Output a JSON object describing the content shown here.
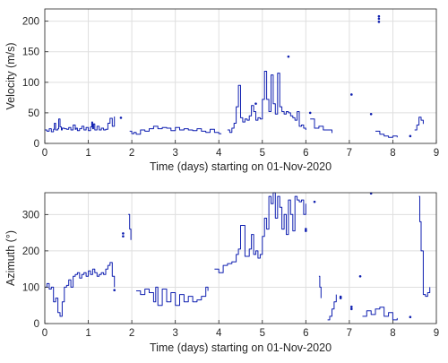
{
  "colors": {
    "series": "#0f1fb0",
    "grid": "#dfdfdf",
    "axis": "#262626"
  },
  "chart_data": [
    {
      "type": "line",
      "title": "",
      "xlabel": "Time (days) starting on 01-Nov-2020",
      "ylabel": "Velocity (m/s)",
      "xlim": [
        0,
        9
      ],
      "ylim": [
        0,
        220
      ],
      "xticks": [
        0,
        1,
        2,
        3,
        4,
        5,
        6,
        7,
        8,
        9
      ],
      "yticks": [
        0,
        50,
        100,
        150,
        200
      ],
      "xtick_labels": [
        "0",
        "1",
        "2",
        "3",
        "4",
        "5",
        "6",
        "7",
        "8",
        "9"
      ],
      "ytick_labels": [
        "0",
        "50",
        "100",
        "150",
        "200"
      ],
      "grid": true,
      "segments": [
        {
          "x": [
            0.0,
            0.05,
            0.1,
            0.15,
            0.2,
            0.22,
            0.25,
            0.3,
            0.32,
            0.35,
            0.38,
            0.4,
            0.45,
            0.5,
            0.55,
            0.6,
            0.65,
            0.7,
            0.72,
            0.75,
            0.8,
            0.85,
            0.9,
            0.95,
            1.0,
            1.05,
            1.08,
            1.1,
            1.12,
            1.15,
            1.2,
            1.25,
            1.3,
            1.35,
            1.4,
            1.45,
            1.5,
            1.55,
            1.6
          ],
          "y": [
            22,
            20,
            24,
            19,
            23,
            33,
            22,
            24,
            40,
            27,
            22,
            25,
            24,
            23,
            26,
            22,
            30,
            23,
            25,
            21,
            24,
            28,
            22,
            26,
            21,
            27,
            35,
            24,
            32,
            22,
            28,
            22,
            25,
            22,
            23,
            33,
            41,
            28,
            44
          ]
        },
        {
          "x": [
            1.95,
            2.0,
            2.05,
            2.1,
            2.2,
            2.3,
            2.4,
            2.5,
            2.6,
            2.7,
            2.8,
            2.9,
            3.0,
            3.1,
            3.2,
            3.3,
            3.4,
            3.5,
            3.6,
            3.7,
            3.8,
            3.9,
            4.0,
            4.05
          ],
          "y": [
            20,
            16,
            18,
            15,
            22,
            20,
            24,
            28,
            24,
            26,
            25,
            21,
            26,
            22,
            24,
            22,
            21,
            24,
            20,
            18,
            23,
            18,
            16,
            15
          ]
        },
        {
          "x": [
            4.2,
            4.25,
            4.3,
            4.35,
            4.4,
            4.45,
            4.5,
            4.55,
            4.6,
            4.65,
            4.7,
            4.75,
            4.8,
            4.85,
            4.9,
            4.95,
            5.0,
            5.05,
            5.1,
            5.15,
            5.2,
            5.25,
            5.3,
            5.35,
            5.4,
            5.45,
            5.5,
            5.55,
            5.6,
            5.65,
            5.7,
            5.75,
            5.8,
            5.85,
            5.9,
            5.95,
            6.0
          ],
          "y": [
            22,
            18,
            25,
            33,
            60,
            95,
            42,
            35,
            40,
            38,
            45,
            62,
            52,
            38,
            42,
            40,
            72,
            118,
            72,
            52,
            112,
            65,
            48,
            115,
            60,
            52,
            48,
            52,
            50,
            45,
            42,
            38,
            52,
            28,
            30,
            25,
            22
          ]
        },
        {
          "x": [
            6.1,
            6.2,
            6.3,
            6.4,
            6.5,
            6.6
          ],
          "y": [
            40,
            25,
            28,
            22,
            22,
            17
          ]
        },
        {
          "x": [
            7.6,
            7.7,
            7.8,
            7.9,
            8.0,
            8.1
          ],
          "y": [
            20,
            15,
            12,
            10,
            12,
            10
          ]
        },
        {
          "x": [
            8.5,
            8.55,
            8.6,
            8.65,
            8.7
          ],
          "y": [
            22,
            30,
            43,
            38,
            32
          ]
        }
      ],
      "points": [
        {
          "x": 1.75,
          "y": 42
        },
        {
          "x": 4.85,
          "y": 65
        },
        {
          "x": 5.6,
          "y": 142
        },
        {
          "x": 6.1,
          "y": 50
        },
        {
          "x": 7.05,
          "y": 80
        },
        {
          "x": 7.5,
          "y": 48
        },
        {
          "x": 7.68,
          "y": 199
        },
        {
          "x": 7.68,
          "y": 204
        },
        {
          "x": 7.68,
          "y": 208
        },
        {
          "x": 8.4,
          "y": 12
        }
      ]
    },
    {
      "type": "line",
      "title": "",
      "xlabel": "Time (days) starting on 01-Nov-2020",
      "ylabel": "Azimuth (°)",
      "xlim": [
        0,
        9
      ],
      "ylim": [
        0,
        360
      ],
      "xticks": [
        0,
        1,
        2,
        3,
        4,
        5,
        6,
        7,
        8,
        9
      ],
      "yticks": [
        0,
        100,
        200,
        300
      ],
      "xtick_labels": [
        "0",
        "1",
        "2",
        "3",
        "4",
        "5",
        "6",
        "7",
        "8",
        "9"
      ],
      "ytick_labels": [
        "0",
        "100",
        "200",
        "300"
      ],
      "grid": true,
      "segments": [
        {
          "x": [
            0.0,
            0.05,
            0.1,
            0.15,
            0.2,
            0.25,
            0.3,
            0.35,
            0.4,
            0.45,
            0.5,
            0.55,
            0.6,
            0.65,
            0.7,
            0.75,
            0.8,
            0.85,
            0.9,
            0.95,
            1.0,
            1.05,
            1.1,
            1.15,
            1.2,
            1.25,
            1.3,
            1.35,
            1.4,
            1.45,
            1.5,
            1.55,
            1.6
          ],
          "y": [
            100,
            110,
            95,
            100,
            60,
            70,
            30,
            20,
            60,
            100,
            105,
            120,
            100,
            130,
            135,
            140,
            125,
            135,
            140,
            130,
            145,
            135,
            150,
            140,
            130,
            135,
            140,
            135,
            150,
            160,
            168,
            130,
            100
          ]
        },
        {
          "x": [
            1.92,
            1.95,
            1.98
          ],
          "y": [
            300,
            260,
            230
          ]
        },
        {
          "x": [
            2.1,
            2.2,
            2.3,
            2.4,
            2.5,
            2.55,
            2.6,
            2.7,
            2.8,
            2.9,
            3.0,
            3.1,
            3.2,
            3.3,
            3.4,
            3.5,
            3.6,
            3.7,
            3.75
          ],
          "y": [
            90,
            80,
            95,
            85,
            60,
            100,
            50,
            95,
            60,
            85,
            50,
            80,
            60,
            75,
            60,
            65,
            75,
            100,
            90
          ]
        },
        {
          "x": [
            3.9,
            4.0,
            4.1,
            4.2,
            4.3,
            4.4,
            4.45,
            4.5,
            4.6,
            4.7,
            4.75,
            4.8,
            4.85,
            4.9,
            4.95,
            5.0,
            5.05,
            5.1,
            5.15,
            5.2,
            5.25,
            5.3,
            5.35,
            5.4,
            5.45,
            5.5,
            5.55,
            5.6,
            5.65,
            5.7,
            5.75,
            5.8,
            5.85,
            5.9,
            5.95,
            6.0
          ],
          "y": [
            150,
            140,
            160,
            165,
            170,
            190,
            205,
            270,
            185,
            205,
            245,
            190,
            200,
            180,
            190,
            240,
            290,
            260,
            350,
            330,
            360,
            290,
            350,
            320,
            260,
            300,
            245,
            340,
            300,
            255,
            350,
            340,
            335,
            340,
            300,
            330
          ]
        },
        {
          "x": [
            6.3,
            6.32,
            6.35
          ],
          "y": [
            130,
            100,
            70
          ]
        },
        {
          "x": [
            6.5,
            6.55,
            6.6,
            6.65,
            6.7
          ],
          "y": [
            10,
            20,
            40,
            60,
            80
          ]
        },
        {
          "x": [
            7.3,
            7.4,
            7.5,
            7.6,
            7.7,
            7.8,
            7.9,
            8.0,
            8.1
          ],
          "y": [
            20,
            35,
            25,
            40,
            45,
            20,
            30,
            10,
            15
          ]
        },
        {
          "x": [
            8.6,
            8.62,
            8.65,
            8.7,
            8.75,
            8.8,
            8.85
          ],
          "y": [
            350,
            280,
            200,
            80,
            75,
            85,
            100
          ]
        }
      ],
      "points": [
        {
          "x": 1.6,
          "y": 92
        },
        {
          "x": 1.8,
          "y": 240
        },
        {
          "x": 1.8,
          "y": 248
        },
        {
          "x": 6.0,
          "y": 255
        },
        {
          "x": 6.0,
          "y": 260
        },
        {
          "x": 6.2,
          "y": 335
        },
        {
          "x": 6.8,
          "y": 70
        },
        {
          "x": 6.8,
          "y": 74
        },
        {
          "x": 7.05,
          "y": 40
        },
        {
          "x": 7.05,
          "y": 46
        },
        {
          "x": 7.25,
          "y": 130
        },
        {
          "x": 7.5,
          "y": 358
        },
        {
          "x": 8.4,
          "y": 18
        }
      ]
    }
  ]
}
